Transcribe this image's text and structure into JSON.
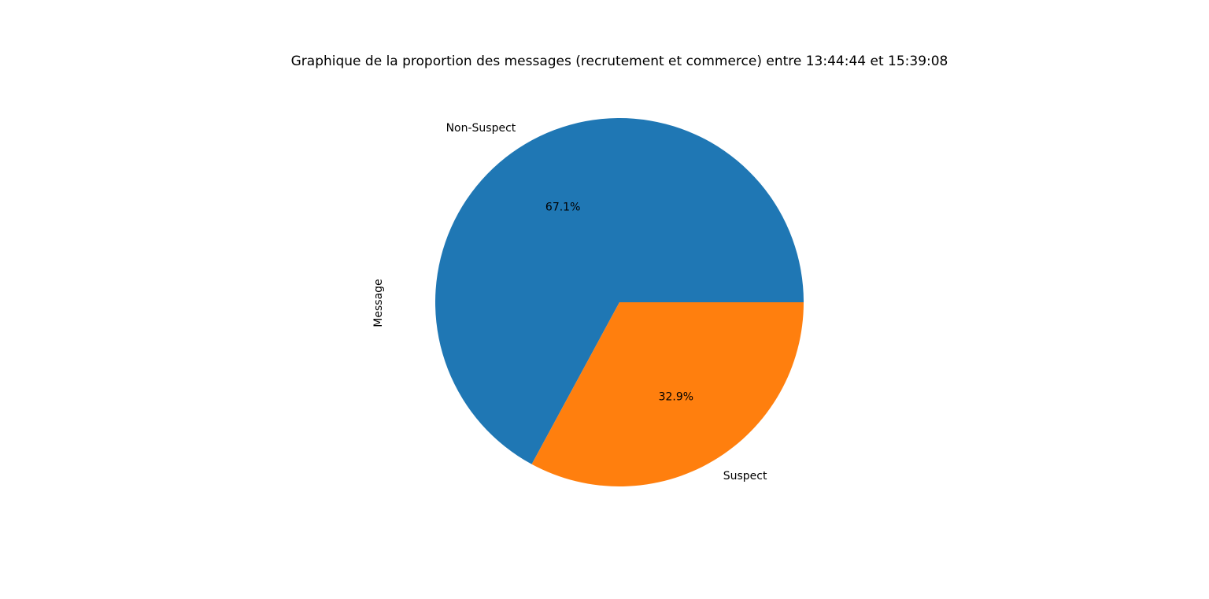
{
  "page": {
    "background": "#ffffff"
  },
  "chart_data": {
    "type": "pie",
    "title": "Graphique de la proportion des messages (recrutement et commerce) entre 13:44:44 et 15:39:08",
    "ylabel": "Message",
    "categories": [
      "Non-Suspect",
      "Suspect"
    ],
    "values": [
      67.1,
      32.9
    ],
    "slices": [
      {
        "label": "Non-Suspect",
        "value": 67.1,
        "pct_label": "67.1%",
        "color": "#1f77b4"
      },
      {
        "label": "Suspect",
        "value": 32.9,
        "pct_label": "32.9%",
        "color": "#ff7f0e"
      }
    ],
    "start_angle_deg": 0,
    "direction": "counterclockwise",
    "legend": "none",
    "grid": false,
    "label_color": "#000000"
  }
}
